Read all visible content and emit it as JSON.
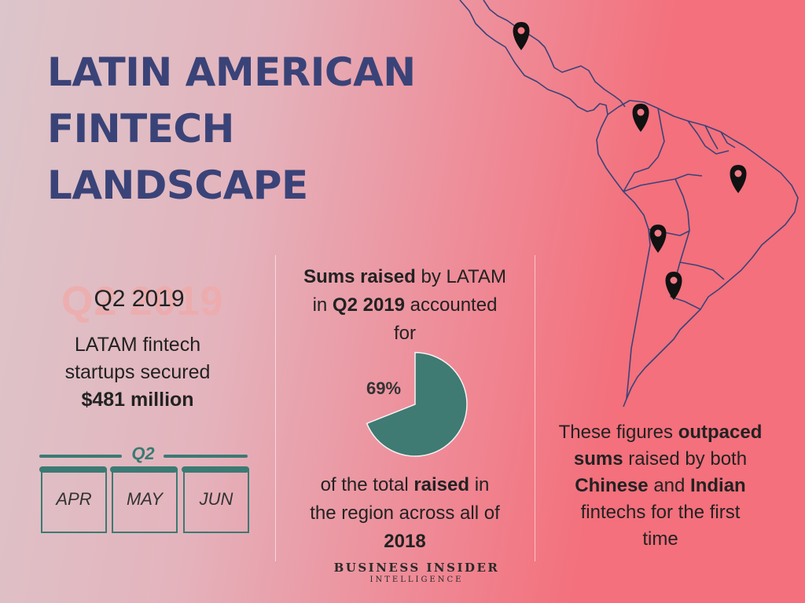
{
  "title": {
    "line1": "LATIN AMERICAN",
    "line2": "FINTECH",
    "line3": "LANDSCAPE"
  },
  "left": {
    "ghost": "Q2 2019",
    "quarter": "Q2 2019",
    "text1": "LATAM fintech",
    "text2": "startups secured",
    "amount": "$481 million",
    "q2_label": "Q2",
    "months": [
      "APR",
      "MAY",
      "JUN"
    ]
  },
  "middle": {
    "top_bold1": "Sums raised",
    "top_rest1": " by LATAM",
    "top_pre2": "in ",
    "top_bold2": "Q2 2019",
    "top_rest2": " accounted",
    "top_line3": "for",
    "percent": "69%",
    "percent_value": 0.69,
    "bottom_pre1": "of the total ",
    "bottom_bold1": "raised",
    "bottom_rest1": " in",
    "bottom_line2": "the region across all of",
    "bottom_bold3": "2018"
  },
  "right": {
    "l1_pre": "These figures ",
    "l1_bold": "outpaced",
    "l2_bold": "sums",
    "l2_rest": " raised by both",
    "l3_bold1": "Chinese",
    "l3_mid": " and ",
    "l3_bold2": "Indian",
    "l4": "fintechs for the first",
    "l5": "time"
  },
  "branding": {
    "line1": "BUSINESS INSIDER",
    "line2": "INTELLIGENCE"
  },
  "colors": {
    "title": "#3a4378",
    "accent": "#3b7a73",
    "pin": "#111111"
  }
}
